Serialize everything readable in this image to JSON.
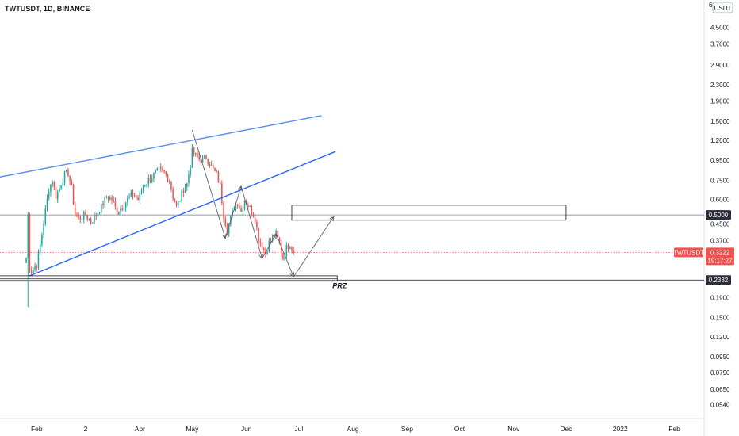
{
  "header": {
    "symbol_title": "TWTUSDT, 1D, BINANCE"
  },
  "price_scale": {
    "currency_label": "USDT",
    "top_partial": "6"
  },
  "colors": {
    "up": "#26a69a",
    "down": "#ef5350",
    "trendline": "#2962ff",
    "channel_upper": "#5b8def",
    "current_price_tag": "#ef5350",
    "level_tag": "#2a2e39",
    "price_line": "#ef5350"
  },
  "chart_data": {
    "type": "candlestick",
    "scale": "log",
    "ylim": [
      0.046,
      6.2
    ],
    "yticks": [
      {
        "value": 4.5,
        "label": "4.5000"
      },
      {
        "value": 3.7,
        "label": "3.7000"
      },
      {
        "value": 2.9,
        "label": "2.9000"
      },
      {
        "value": 2.3,
        "label": "2.3000"
      },
      {
        "value": 1.9,
        "label": "1.9000"
      },
      {
        "value": 1.5,
        "label": "1.5000"
      },
      {
        "value": 1.2,
        "label": "1.2000"
      },
      {
        "value": 0.95,
        "label": "0.9500"
      },
      {
        "value": 0.75,
        "label": "0.7500"
      },
      {
        "value": 0.6,
        "label": "0.6000"
      },
      {
        "value": 0.45,
        "label": "0.4500"
      },
      {
        "value": 0.37,
        "label": "0.3700"
      },
      {
        "value": 0.19,
        "label": "0.1900"
      },
      {
        "value": 0.15,
        "label": "0.1500"
      },
      {
        "value": 0.12,
        "label": "0.1200"
      },
      {
        "value": 0.095,
        "label": "0.0950"
      },
      {
        "value": 0.079,
        "label": "0.0790"
      },
      {
        "value": 0.065,
        "label": "0.0650"
      },
      {
        "value": 0.054,
        "label": "0.0540"
      }
    ],
    "xticks": [
      {
        "date": "2021-02-01",
        "label": "Feb"
      },
      {
        "date": "2021-03-01",
        "label": "2"
      },
      {
        "date": "2021-04-01",
        "label": "Apr"
      },
      {
        "date": "2021-05-01",
        "label": "May"
      },
      {
        "date": "2021-06-01",
        "label": "Jun"
      },
      {
        "date": "2021-07-01",
        "label": "Jul"
      },
      {
        "date": "2021-08-01",
        "label": "Aug"
      },
      {
        "date": "2021-09-01",
        "label": "Sep"
      },
      {
        "date": "2021-10-01",
        "label": "Oct"
      },
      {
        "date": "2021-11-01",
        "label": "Nov"
      },
      {
        "date": "2021-12-01",
        "label": "Dec"
      },
      {
        "date": "2022-01-01",
        "label": "2022"
      },
      {
        "date": "2022-02-01",
        "label": "Feb"
      }
    ],
    "xlim": [
      "2021-01-11",
      "2022-02-18"
    ],
    "anchors": [
      [
        "2021-01-26",
        0.3
      ],
      [
        "2021-01-27",
        0.5
      ],
      [
        "2021-01-28",
        0.27
      ],
      [
        "2021-01-29",
        0.26
      ],
      [
        "2021-02-01",
        0.28
      ],
      [
        "2021-02-03",
        0.35
      ],
      [
        "2021-02-05",
        0.46
      ],
      [
        "2021-02-08",
        0.68
      ],
      [
        "2021-02-10",
        0.75
      ],
      [
        "2021-02-12",
        0.62
      ],
      [
        "2021-02-15",
        0.72
      ],
      [
        "2021-02-17",
        0.8
      ],
      [
        "2021-02-19",
        0.82
      ],
      [
        "2021-02-21",
        0.68
      ],
      [
        "2021-02-23",
        0.5
      ],
      [
        "2021-02-25",
        0.48
      ],
      [
        "2021-03-01",
        0.5
      ],
      [
        "2021-03-04",
        0.46
      ],
      [
        "2021-03-07",
        0.5
      ],
      [
        "2021-03-10",
        0.55
      ],
      [
        "2021-03-13",
        0.62
      ],
      [
        "2021-03-16",
        0.6
      ],
      [
        "2021-03-19",
        0.52
      ],
      [
        "2021-03-22",
        0.55
      ],
      [
        "2021-03-25",
        0.6
      ],
      [
        "2021-03-28",
        0.64
      ],
      [
        "2021-03-31",
        0.6
      ],
      [
        "2021-04-03",
        0.7
      ],
      [
        "2021-04-06",
        0.75
      ],
      [
        "2021-04-09",
        0.8
      ],
      [
        "2021-04-12",
        0.84
      ],
      [
        "2021-04-15",
        0.82
      ],
      [
        "2021-04-18",
        0.75
      ],
      [
        "2021-04-20",
        0.62
      ],
      [
        "2021-04-22",
        0.55
      ],
      [
        "2021-04-24",
        0.6
      ],
      [
        "2021-04-26",
        0.68
      ],
      [
        "2021-04-28",
        0.72
      ],
      [
        "2021-04-30",
        0.9
      ],
      [
        "2021-05-01",
        1.05
      ],
      [
        "2021-05-03",
        1.0
      ],
      [
        "2021-05-05",
        0.97
      ],
      [
        "2021-05-07",
        0.95
      ],
      [
        "2021-05-09",
        0.98
      ],
      [
        "2021-05-11",
        0.92
      ],
      [
        "2021-05-13",
        0.85
      ],
      [
        "2021-05-15",
        0.8
      ],
      [
        "2021-05-17",
        0.7
      ],
      [
        "2021-05-19",
        0.5
      ],
      [
        "2021-05-21",
        0.42
      ],
      [
        "2021-05-23",
        0.48
      ],
      [
        "2021-05-25",
        0.55
      ],
      [
        "2021-05-27",
        0.58
      ],
      [
        "2021-05-29",
        0.52
      ],
      [
        "2021-05-31",
        0.6
      ],
      [
        "2021-06-02",
        0.56
      ],
      [
        "2021-06-04",
        0.52
      ],
      [
        "2021-06-06",
        0.48
      ],
      [
        "2021-06-08",
        0.38
      ],
      [
        "2021-06-10",
        0.35
      ],
      [
        "2021-06-12",
        0.32
      ],
      [
        "2021-06-14",
        0.36
      ],
      [
        "2021-06-16",
        0.38
      ],
      [
        "2021-06-18",
        0.4
      ],
      [
        "2021-06-20",
        0.35
      ],
      [
        "2021-06-22",
        0.3
      ],
      [
        "2021-06-24",
        0.34
      ],
      [
        "2021-06-26",
        0.36
      ],
      [
        "2021-06-28",
        0.3222
      ]
    ],
    "spike_lows": [
      [
        "2021-01-27",
        0.17
      ]
    ],
    "current_price": {
      "value": 0.3222,
      "label": "0.3222",
      "symbol": "TWTUSDT",
      "countdown": "19:17:27"
    },
    "levels": [
      {
        "value": 0.5,
        "label": "0.5000",
        "color": "#787b86"
      },
      {
        "value": 0.2332,
        "label": "0.2332",
        "color": "#131722"
      }
    ],
    "drawings": {
      "upper_line": {
        "from": [
          "2021-01-01",
          0.75
        ],
        "to": [
          "2021-07-14",
          1.6
        ]
      },
      "lower_line": {
        "from": [
          "2021-01-28",
          0.245
        ],
        "to": [
          "2021-07-22",
          1.05
        ]
      },
      "zone_top": {
        "from": [
          "2021-06-27",
          0.56
        ],
        "to": [
          "2021-12-01",
          0.47
        ]
      },
      "zone_bottom": {
        "from": [
          "2021-01-10",
          0.245
        ],
        "to": [
          "2021-07-23",
          0.23
        ]
      },
      "zone_bottom_label": "PRZ",
      "zigzag": [
        [
          "2021-05-01",
          1.35
        ],
        [
          "2021-05-20",
          0.38
        ],
        [
          "2021-05-29",
          0.7
        ],
        [
          "2021-06-10",
          0.3
        ],
        [
          "2021-06-18",
          0.4
        ],
        [
          "2021-06-28",
          0.242
        ],
        [
          "2021-07-21",
          0.49
        ]
      ]
    }
  }
}
